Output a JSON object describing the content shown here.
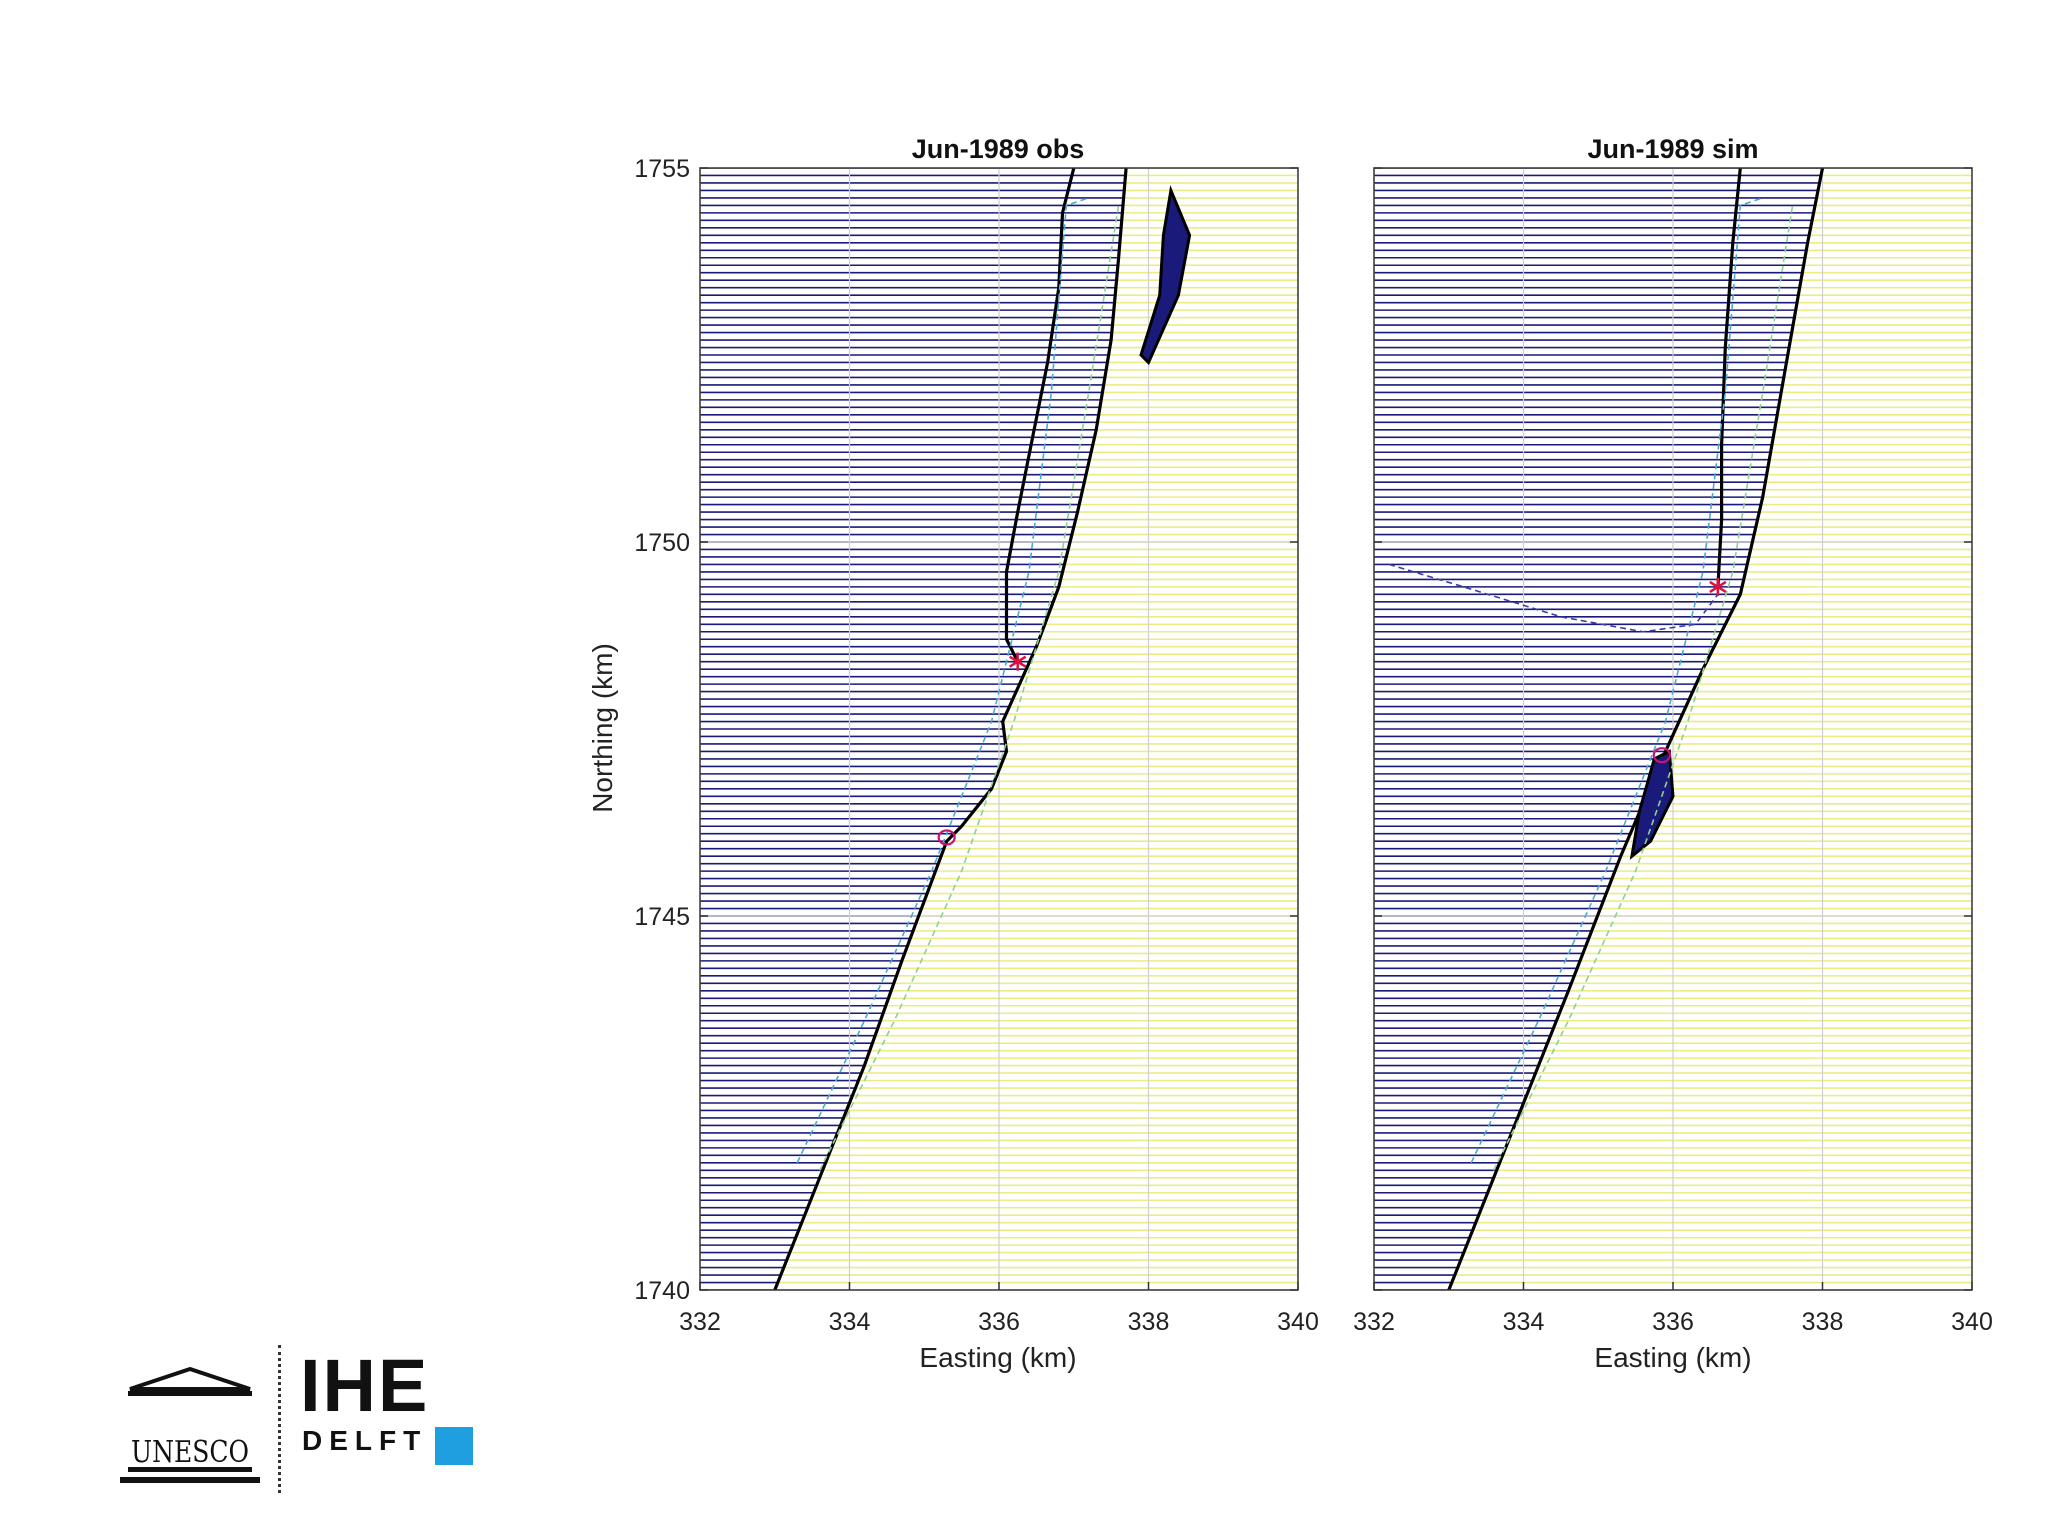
{
  "chart_data": [
    {
      "type": "line",
      "title": "Jun-1989 obs",
      "xlabel": "Easting (km)",
      "ylabel": "Northing (km)",
      "xlim": [
        332,
        340
      ],
      "ylim": [
        1740,
        1755
      ],
      "xticks": [
        "332",
        "334",
        "336",
        "338",
        "340"
      ],
      "yticks": [
        "1740",
        "1745",
        "1750",
        "1755"
      ],
      "grid": true,
      "water_color": "#1a1a7a",
      "land_color": "#ecec82",
      "coast_color": "#000000",
      "series": [
        {
          "role": "coastline",
          "points": [
            [
              333.0,
              1740.0
            ],
            [
              333.6,
              1741.5
            ],
            [
              334.2,
              1743.0
            ],
            [
              334.7,
              1744.4
            ],
            [
              335.15,
              1745.6
            ],
            [
              335.3,
              1746.0
            ],
            [
              335.5,
              1746.2
            ],
            [
              335.9,
              1746.7
            ],
            [
              336.1,
              1747.2
            ],
            [
              336.05,
              1747.6
            ],
            [
              336.5,
              1748.6
            ],
            [
              336.8,
              1749.4
            ],
            [
              337.05,
              1750.4
            ],
            [
              337.3,
              1751.5
            ],
            [
              337.5,
              1752.7
            ],
            [
              337.6,
              1753.8
            ],
            [
              337.7,
              1755.0
            ]
          ]
        },
        {
          "role": "spit-inner-edge",
          "points": [
            [
              336.25,
              1748.4
            ],
            [
              336.1,
              1748.7
            ],
            [
              336.1,
              1749.6
            ],
            [
              336.25,
              1750.4
            ],
            [
              336.45,
              1751.4
            ],
            [
              336.65,
              1752.4
            ],
            [
              336.8,
              1753.4
            ],
            [
              336.85,
              1754.4
            ],
            [
              337.0,
              1755.0
            ]
          ]
        },
        {
          "role": "island",
          "points": [
            [
              338.3,
              1754.7
            ],
            [
              338.55,
              1754.1
            ],
            [
              338.4,
              1753.3
            ],
            [
              338.0,
              1752.4
            ],
            [
              337.9,
              1752.5
            ],
            [
              338.15,
              1753.3
            ],
            [
              338.2,
              1754.1
            ]
          ]
        },
        {
          "role": "initial-coastline-a",
          "style": "dashed",
          "points": [
            [
              333.3,
              1741.7
            ],
            [
              334.2,
              1743.6
            ],
            [
              335.1,
              1745.6
            ],
            [
              335.9,
              1747.6
            ],
            [
              336.4,
              1749.6
            ],
            [
              336.7,
              1752.0
            ],
            [
              336.9,
              1754.5
            ],
            [
              337.2,
              1754.6
            ]
          ]
        },
        {
          "role": "initial-coastline-b",
          "style": "dashed",
          "points": [
            [
              333.6,
              1741.6
            ],
            [
              334.6,
              1743.6
            ],
            [
              335.5,
              1745.6
            ],
            [
              336.2,
              1747.6
            ],
            [
              336.8,
              1749.6
            ],
            [
              337.2,
              1752.0
            ],
            [
              337.6,
              1754.5
            ]
          ]
        },
        {
          "role": "spit-tip",
          "marker": "*",
          "points": [
            [
              336.25,
              1748.4
            ]
          ]
        },
        {
          "role": "inlet-marker",
          "marker": "o",
          "points": [
            [
              335.3,
              1746.05
            ]
          ]
        }
      ]
    },
    {
      "type": "line",
      "title": "Jun-1989 sim",
      "xlabel": "Easting (km)",
      "xlim": [
        332,
        340
      ],
      "ylim": [
        1740,
        1755
      ],
      "xticks": [
        "332",
        "334",
        "336",
        "338",
        "340"
      ],
      "grid": true,
      "water_color": "#1a1a7a",
      "land_color": "#ecec82",
      "coast_color": "#000000",
      "series": [
        {
          "role": "coastline",
          "points": [
            [
              333.0,
              1740.0
            ],
            [
              333.8,
              1742.0
            ],
            [
              334.6,
              1744.0
            ],
            [
              335.3,
              1745.8
            ],
            [
              335.9,
              1747.2
            ],
            [
              336.4,
              1748.3
            ],
            [
              336.9,
              1749.3
            ],
            [
              337.2,
              1750.6
            ],
            [
              337.5,
              1752.3
            ],
            [
              337.8,
              1754.0
            ],
            [
              338.0,
              1755.0
            ]
          ]
        },
        {
          "role": "spit-inner-edge",
          "points": [
            [
              336.6,
              1749.4
            ],
            [
              336.65,
              1750.3
            ],
            [
              336.65,
              1751.3
            ],
            [
              336.7,
              1752.6
            ],
            [
              336.8,
              1754.0
            ],
            [
              336.9,
              1755.0
            ]
          ]
        },
        {
          "role": "island",
          "points": [
            [
              335.75,
              1747.1
            ],
            [
              335.95,
              1747.2
            ],
            [
              336.0,
              1746.6
            ],
            [
              335.7,
              1746.0
            ],
            [
              335.45,
              1745.8
            ],
            [
              335.55,
              1746.4
            ]
          ]
        },
        {
          "role": "initial-coastline-a",
          "style": "dashed",
          "points": [
            [
              333.3,
              1741.7
            ],
            [
              334.2,
              1743.6
            ],
            [
              335.1,
              1745.6
            ],
            [
              335.9,
              1747.6
            ],
            [
              336.4,
              1749.6
            ],
            [
              336.7,
              1752.0
            ],
            [
              336.9,
              1754.5
            ],
            [
              337.2,
              1754.6
            ]
          ]
        },
        {
          "role": "initial-coastline-b",
          "style": "dashed",
          "points": [
            [
              333.6,
              1741.6
            ],
            [
              334.6,
              1743.6
            ],
            [
              335.5,
              1745.6
            ],
            [
              336.2,
              1747.6
            ],
            [
              336.8,
              1749.6
            ],
            [
              337.2,
              1752.0
            ],
            [
              337.6,
              1754.5
            ]
          ]
        },
        {
          "role": "lagoon-boundary",
          "style": "dashed",
          "points": [
            [
              332.2,
              1749.7
            ],
            [
              333.2,
              1749.4
            ],
            [
              334.5,
              1749.0
            ],
            [
              335.6,
              1748.8
            ],
            [
              336.3,
              1748.9
            ],
            [
              336.6,
              1749.3
            ]
          ]
        },
        {
          "role": "spit-tip",
          "marker": "*",
          "points": [
            [
              336.6,
              1749.4
            ]
          ]
        },
        {
          "role": "inlet-marker",
          "marker": "o",
          "points": [
            [
              335.85,
              1747.15
            ]
          ]
        }
      ]
    }
  ],
  "logo": {
    "unesco": "UNESCO",
    "ihe_line1": "IHE",
    "ihe_line2": "DELFT",
    "accent": "#1f9fe0"
  }
}
